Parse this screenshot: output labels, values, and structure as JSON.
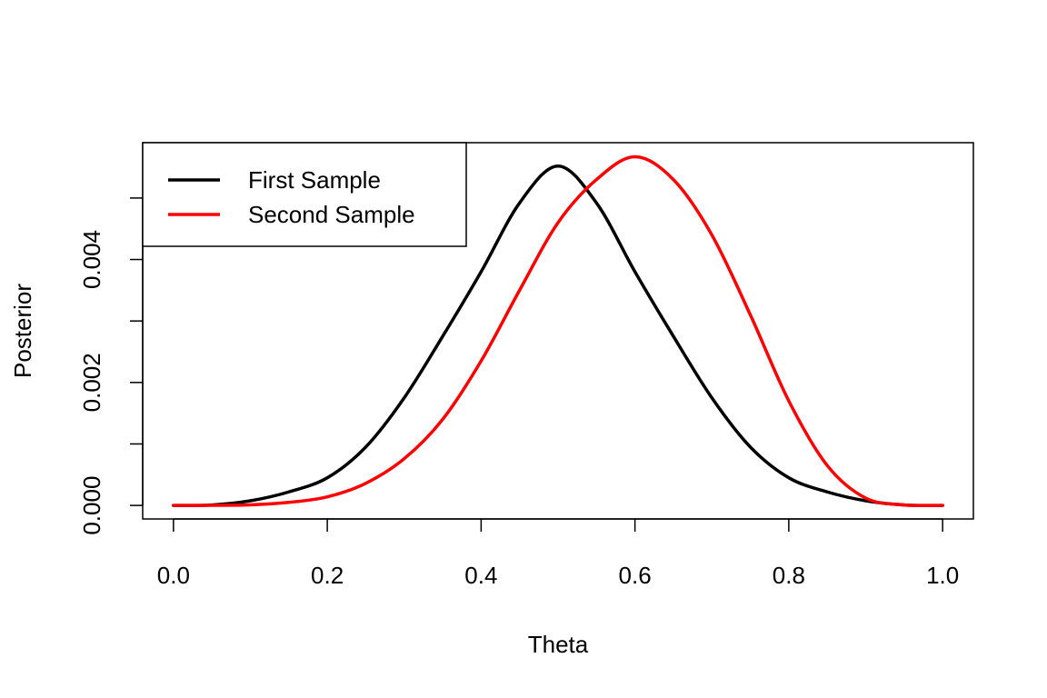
{
  "chart_data": {
    "type": "line",
    "title": "",
    "xlabel": "Theta",
    "ylabel": "Posterior",
    "xlim": [
      -0.04,
      1.04
    ],
    "ylim": [
      -0.00022,
      0.0059
    ],
    "x_ticks": [
      {
        "value": 0.0,
        "label": "0.0"
      },
      {
        "value": 0.2,
        "label": "0.2"
      },
      {
        "value": 0.4,
        "label": "0.4"
      },
      {
        "value": 0.6,
        "label": "0.6"
      },
      {
        "value": 0.8,
        "label": "0.8"
      },
      {
        "value": 1.0,
        "label": "1.0"
      }
    ],
    "y_ticks": [
      {
        "value": 0.0,
        "label": "0.000"
      },
      {
        "value": 0.001,
        "label": ""
      },
      {
        "value": 0.002,
        "label": "0.002"
      },
      {
        "value": 0.003,
        "label": ""
      },
      {
        "value": 0.004,
        "label": "0.004"
      },
      {
        "value": 0.005,
        "label": ""
      }
    ],
    "grid": false,
    "legend_position": "top-left",
    "series": [
      {
        "name": "First Sample",
        "color": "#000000",
        "x": [
          0.0,
          0.05,
          0.1,
          0.15,
          0.2,
          0.25,
          0.3,
          0.35,
          0.4,
          0.45,
          0.5,
          0.55,
          0.6,
          0.65,
          0.7,
          0.75,
          0.8,
          0.85,
          0.9,
          0.95,
          1.0
        ],
        "y": [
          0.0,
          8e-06,
          7.6e-05,
          0.00022,
          0.00045,
          0.00095,
          0.00175,
          0.00275,
          0.0038,
          0.00492,
          0.00552,
          0.00492,
          0.0038,
          0.00275,
          0.00175,
          0.00095,
          0.00045,
          0.00022,
          7.6e-05,
          8e-06,
          0.0
        ]
      },
      {
        "name": "Second Sample",
        "color": "#ff0000",
        "x": [
          0.0,
          0.05,
          0.1,
          0.15,
          0.2,
          0.25,
          0.3,
          0.35,
          0.4,
          0.45,
          0.5,
          0.55,
          0.6,
          0.65,
          0.7,
          0.75,
          0.8,
          0.85,
          0.9,
          0.95,
          1.0
        ],
        "y": [
          0.0,
          1e-06,
          1e-05,
          5e-05,
          0.00014,
          0.00036,
          0.00076,
          0.0014,
          0.00235,
          0.0035,
          0.0046,
          0.0053,
          0.00567,
          0.0053,
          0.0044,
          0.0031,
          0.0017,
          0.00065,
          0.00012,
          8e-06,
          0.0
        ]
      }
    ]
  }
}
